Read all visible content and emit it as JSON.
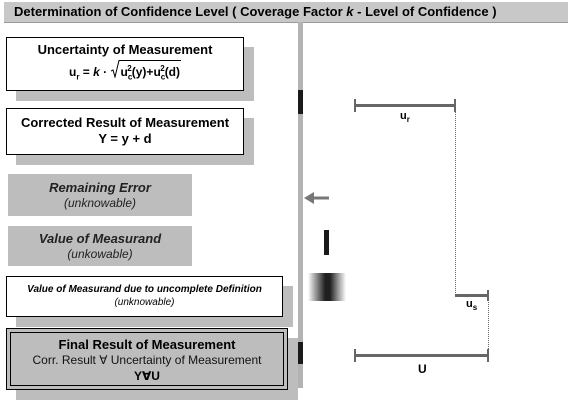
{
  "title": {
    "prefix": "Determination of Confidence Level ( Coverage Factor ",
    "k": "k",
    "suffix": " - Level of Confidence )"
  },
  "uncertainty": {
    "title": "Uncertainty of Measurement",
    "formula_left": "u",
    "formula_left_sub": "r",
    "formula_k": "k",
    "term1": "u",
    "term1_sub": "c",
    "term1_sup": "2",
    "term1_arg": "(y)",
    "plus": "+",
    "term2": "u",
    "term2_sub": "c",
    "term2_sup": "2",
    "term2_arg": "(d)"
  },
  "corrected": {
    "title": "Corrected Result of Measurement",
    "formula": "Y = y + d"
  },
  "remaining": {
    "title": "Remaining Error",
    "sub": "(unknowable)"
  },
  "measurand": {
    "title": "Value of Measurand",
    "sub": "(unkowable)"
  },
  "definition": {
    "title": "Value of Measurand due to uncomplete Definition",
    "sub": "(unknowable)"
  },
  "final": {
    "title": "Final Result of Measurement",
    "sub": "Corr. Result ∀ Uncertainty of Measurement",
    "sym": "Y∀U"
  },
  "labels": {
    "ur": "u",
    "ur_sub": "r",
    "us": "u",
    "us_sub": "s",
    "U": "U"
  },
  "colors": {
    "title_bar": "#c8c8c8",
    "grey_box": "#bdbdbd",
    "axis": "#b3b3b3",
    "mark": "#1a1a1a",
    "arrow": "#777777"
  }
}
